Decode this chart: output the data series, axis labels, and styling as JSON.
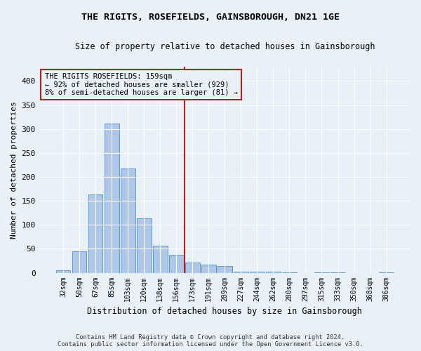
{
  "title": "THE RIGITS, ROSEFIELDS, GAINSBOROUGH, DN21 1GE",
  "subtitle": "Size of property relative to detached houses in Gainsborough",
  "xlabel": "Distribution of detached houses by size in Gainsborough",
  "ylabel": "Number of detached properties",
  "footer_line1": "Contains HM Land Registry data © Crown copyright and database right 2024.",
  "footer_line2": "Contains public sector information licensed under the Open Government Licence v3.0.",
  "bins": [
    "32sqm",
    "50sqm",
    "67sqm",
    "85sqm",
    "103sqm",
    "120sqm",
    "138sqm",
    "156sqm",
    "173sqm",
    "191sqm",
    "209sqm",
    "227sqm",
    "244sqm",
    "262sqm",
    "280sqm",
    "297sqm",
    "315sqm",
    "333sqm",
    "350sqm",
    "368sqm",
    "386sqm"
  ],
  "values": [
    5,
    45,
    163,
    312,
    218,
    113,
    57,
    38,
    22,
    17,
    14,
    3,
    3,
    2,
    1,
    0,
    1,
    1,
    0,
    0,
    1
  ],
  "bar_color": "#aec6e8",
  "bar_edge_color": "#5b9bd5",
  "vline_x_index": 7.5,
  "vline_color": "#b52020",
  "annotation_text": "THE RIGITS ROSEFIELDS: 159sqm\n← 92% of detached houses are smaller (929)\n8% of semi-detached houses are larger (81) →",
  "annotation_box_color": "#b52020",
  "bg_color": "#e8f0f8",
  "ylim": [
    0,
    430
  ],
  "yticks": [
    0,
    50,
    100,
    150,
    200,
    250,
    300,
    350,
    400
  ]
}
